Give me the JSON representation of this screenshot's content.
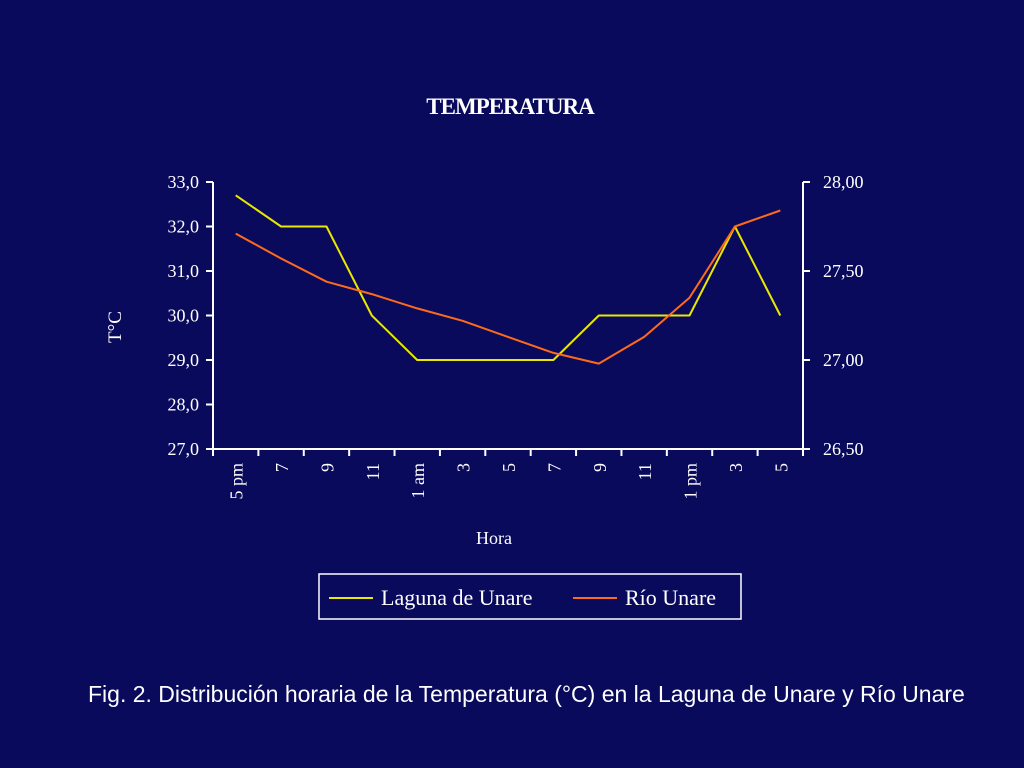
{
  "chart_data": {
    "type": "line",
    "title": "TEMPERATURA",
    "xlabel": "Hora",
    "ylabel": "T°C",
    "ylabel_right": "",
    "categories": [
      "5 pm",
      "7",
      "9",
      "11",
      "1 am",
      "3",
      "5",
      "7",
      "9",
      "11",
      "1 pm",
      "3",
      "5"
    ],
    "y_ticks_left": [
      "33,0",
      "32,0",
      "31,0",
      "30,0",
      "29,0",
      "28,0",
      "27,0"
    ],
    "y_ticks_right": [
      "28,00",
      "27,50",
      "27,00",
      "26,50"
    ],
    "ylim_left": [
      27.0,
      33.0
    ],
    "ylim_right": [
      26.5,
      28.0
    ],
    "series": [
      {
        "name": "Laguna de Unare",
        "axis": "left",
        "color": "#e8e800",
        "values": [
          32.7,
          32.0,
          32.0,
          30.0,
          29.0,
          29.0,
          29.0,
          29.0,
          30.0,
          30.0,
          30.0,
          32.0,
          30.0
        ]
      },
      {
        "name": "Río Unare",
        "axis": "right",
        "color": "#ff6a1a",
        "values": [
          27.71,
          27.57,
          27.44,
          27.37,
          27.29,
          27.22,
          27.13,
          27.04,
          26.98,
          27.13,
          27.35,
          27.75,
          27.84
        ]
      }
    ],
    "grid": false,
    "legend": "bottom-center"
  },
  "caption": "Fig. 2. Distribución horaria de la Temperatura (°C) en la Laguna de Unare y Río Unare"
}
